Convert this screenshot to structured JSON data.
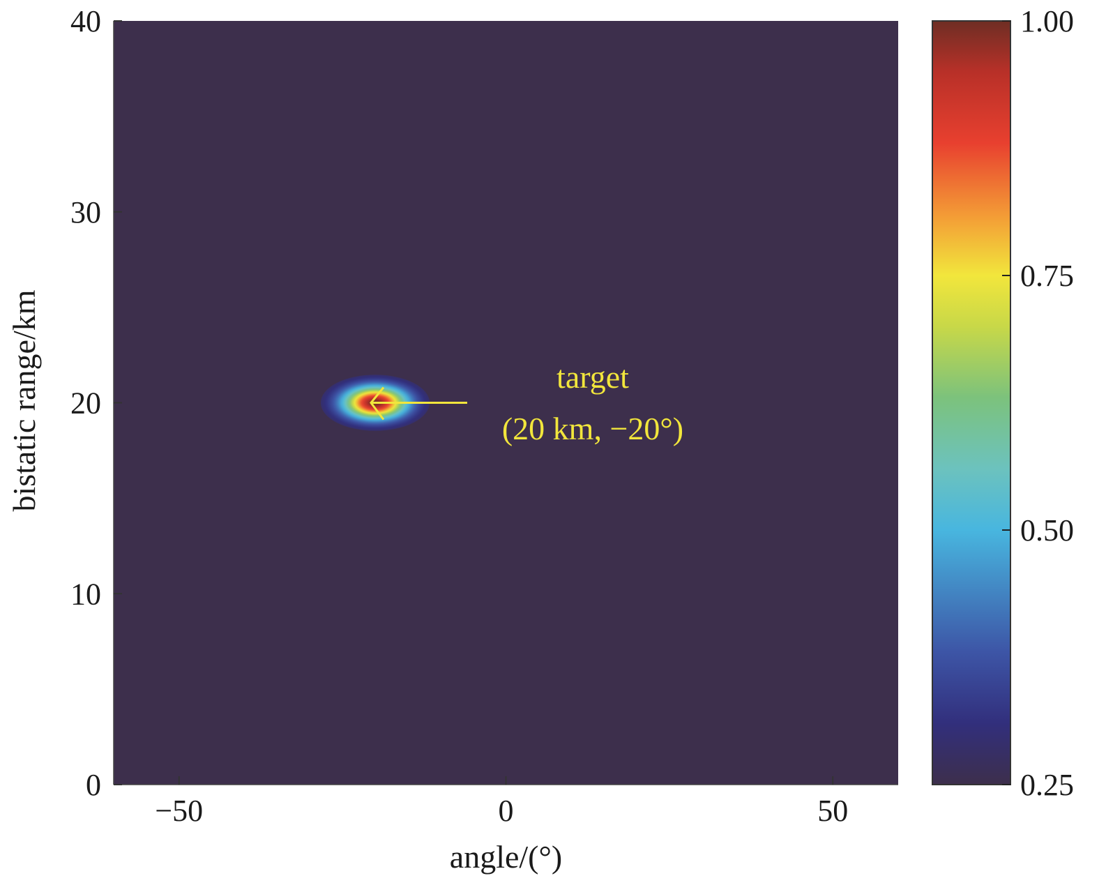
{
  "chart_data": {
    "type": "heatmap",
    "xlabel": "angle/(°)",
    "ylabel": "bistatic range/km",
    "xlim": [
      -60,
      60
    ],
    "ylim": [
      0,
      40
    ],
    "x_ticks": [
      -50,
      0,
      50
    ],
    "x_tick_labels": [
      "−50",
      "0",
      "50"
    ],
    "y_ticks": [
      0,
      10,
      20,
      30,
      40
    ],
    "y_tick_labels": [
      "0",
      "10",
      "20",
      "30",
      "40"
    ],
    "background_value": 0.25,
    "peak": {
      "x": -20,
      "y": 20,
      "value": 1.0,
      "sigma_x_deg": 3.4,
      "sigma_y_km": 0.6
    },
    "colorbar": {
      "min": 0.25,
      "max": 1.0,
      "ticks": [
        0.25,
        0.5,
        0.75,
        1.0
      ],
      "tick_labels": [
        "0.25",
        "0.50",
        "0.75",
        "1.00"
      ],
      "colormap": [
        {
          "v": 0.25,
          "color": "#3d2f4c"
        },
        {
          "v": 0.31,
          "color": "#322f7c"
        },
        {
          "v": 0.38,
          "color": "#3d55a6"
        },
        {
          "v": 0.5,
          "color": "#48b6df"
        },
        {
          "v": 0.56,
          "color": "#6cc2be"
        },
        {
          "v": 0.63,
          "color": "#7cc27c"
        },
        {
          "v": 0.7,
          "color": "#c8d848"
        },
        {
          "v": 0.75,
          "color": "#f2e63c"
        },
        {
          "v": 0.81,
          "color": "#f39a36"
        },
        {
          "v": 0.88,
          "color": "#e8402f"
        },
        {
          "v": 0.95,
          "color": "#b83028"
        },
        {
          "v": 1.0,
          "color": "#6e2e24"
        }
      ]
    },
    "annotation": {
      "line1": "target",
      "line2": "(20 km, −20°)",
      "color": "#f2e63c",
      "points_to": {
        "x": -20,
        "y": 20
      }
    }
  }
}
